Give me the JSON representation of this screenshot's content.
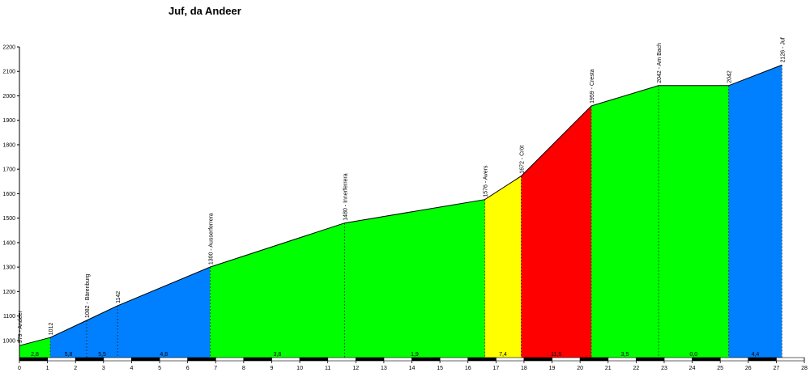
{
  "chart_data": {
    "type": "area",
    "title": "Juf, da Andeer",
    "xlabel": "",
    "ylabel": "",
    "xlim": [
      0,
      28
    ],
    "ylim": [
      930,
      2200
    ],
    "x_ticks": [
      0,
      1,
      2,
      3,
      4,
      5,
      6,
      7,
      8,
      9,
      10,
      11,
      12,
      13,
      14,
      15,
      16,
      17,
      18,
      19,
      20,
      21,
      22,
      23,
      24,
      25,
      26,
      27,
      28
    ],
    "y_ticks": [
      1000,
      1100,
      1200,
      1300,
      1400,
      1500,
      1600,
      1700,
      1800,
      1900,
      2000,
      2100,
      2200
    ],
    "grid": false,
    "profile": [
      {
        "x": 0,
        "y": 979,
        "label": "979 - Andeer"
      },
      {
        "x": 1.1,
        "y": 1012,
        "label": "1012"
      },
      {
        "x": 2.4,
        "y": 1082,
        "label": "1082 - Bärenburg"
      },
      {
        "x": 3.5,
        "y": 1142,
        "label": "1142"
      },
      {
        "x": 6.8,
        "y": 1300,
        "label": "1300 - Ausserferrera"
      },
      {
        "x": 11.6,
        "y": 1480,
        "label": "1480 - Innerferrera"
      },
      {
        "x": 16.6,
        "y": 1576,
        "label": "1576 - Avers"
      },
      {
        "x": 17.9,
        "y": 1672,
        "label": "1672 - Cröt"
      },
      {
        "x": 20.4,
        "y": 1959,
        "label": "1959 - Cresta"
      },
      {
        "x": 22.8,
        "y": 2042,
        "label": "2042 - Am Bach"
      },
      {
        "x": 25.3,
        "y": 2042,
        "label": "2042"
      },
      {
        "x": 27.2,
        "y": 2126,
        "label": "2126 - Juf"
      }
    ],
    "segments": [
      {
        "x0": 0,
        "x1": 1.1,
        "gradient": "2,8",
        "color": "#00ff00"
      },
      {
        "x0": 1.1,
        "x1": 2.4,
        "gradient": "5,8",
        "color": "#0080ff"
      },
      {
        "x0": 2.4,
        "x1": 3.5,
        "gradient": "5,5",
        "color": "#0080ff"
      },
      {
        "x0": 3.5,
        "x1": 6.8,
        "gradient": "4,8",
        "color": "#0080ff"
      },
      {
        "x0": 6.8,
        "x1": 11.6,
        "gradient": "3,8",
        "color": "#00ff00"
      },
      {
        "x0": 11.6,
        "x1": 16.6,
        "gradient": "1,9",
        "color": "#00ff00"
      },
      {
        "x0": 16.6,
        "x1": 17.9,
        "gradient": "7,4",
        "color": "#ffff00"
      },
      {
        "x0": 17.9,
        "x1": 20.4,
        "gradient": "11,5",
        "color": "#ff0000"
      },
      {
        "x0": 20.4,
        "x1": 22.8,
        "gradient": "3,5",
        "color": "#00ff00"
      },
      {
        "x0": 22.8,
        "x1": 25.3,
        "gradient": "0,0",
        "color": "#00ff00"
      },
      {
        "x0": 25.3,
        "x1": 27.2,
        "gradient": "4,4",
        "color": "#0080ff"
      }
    ]
  }
}
